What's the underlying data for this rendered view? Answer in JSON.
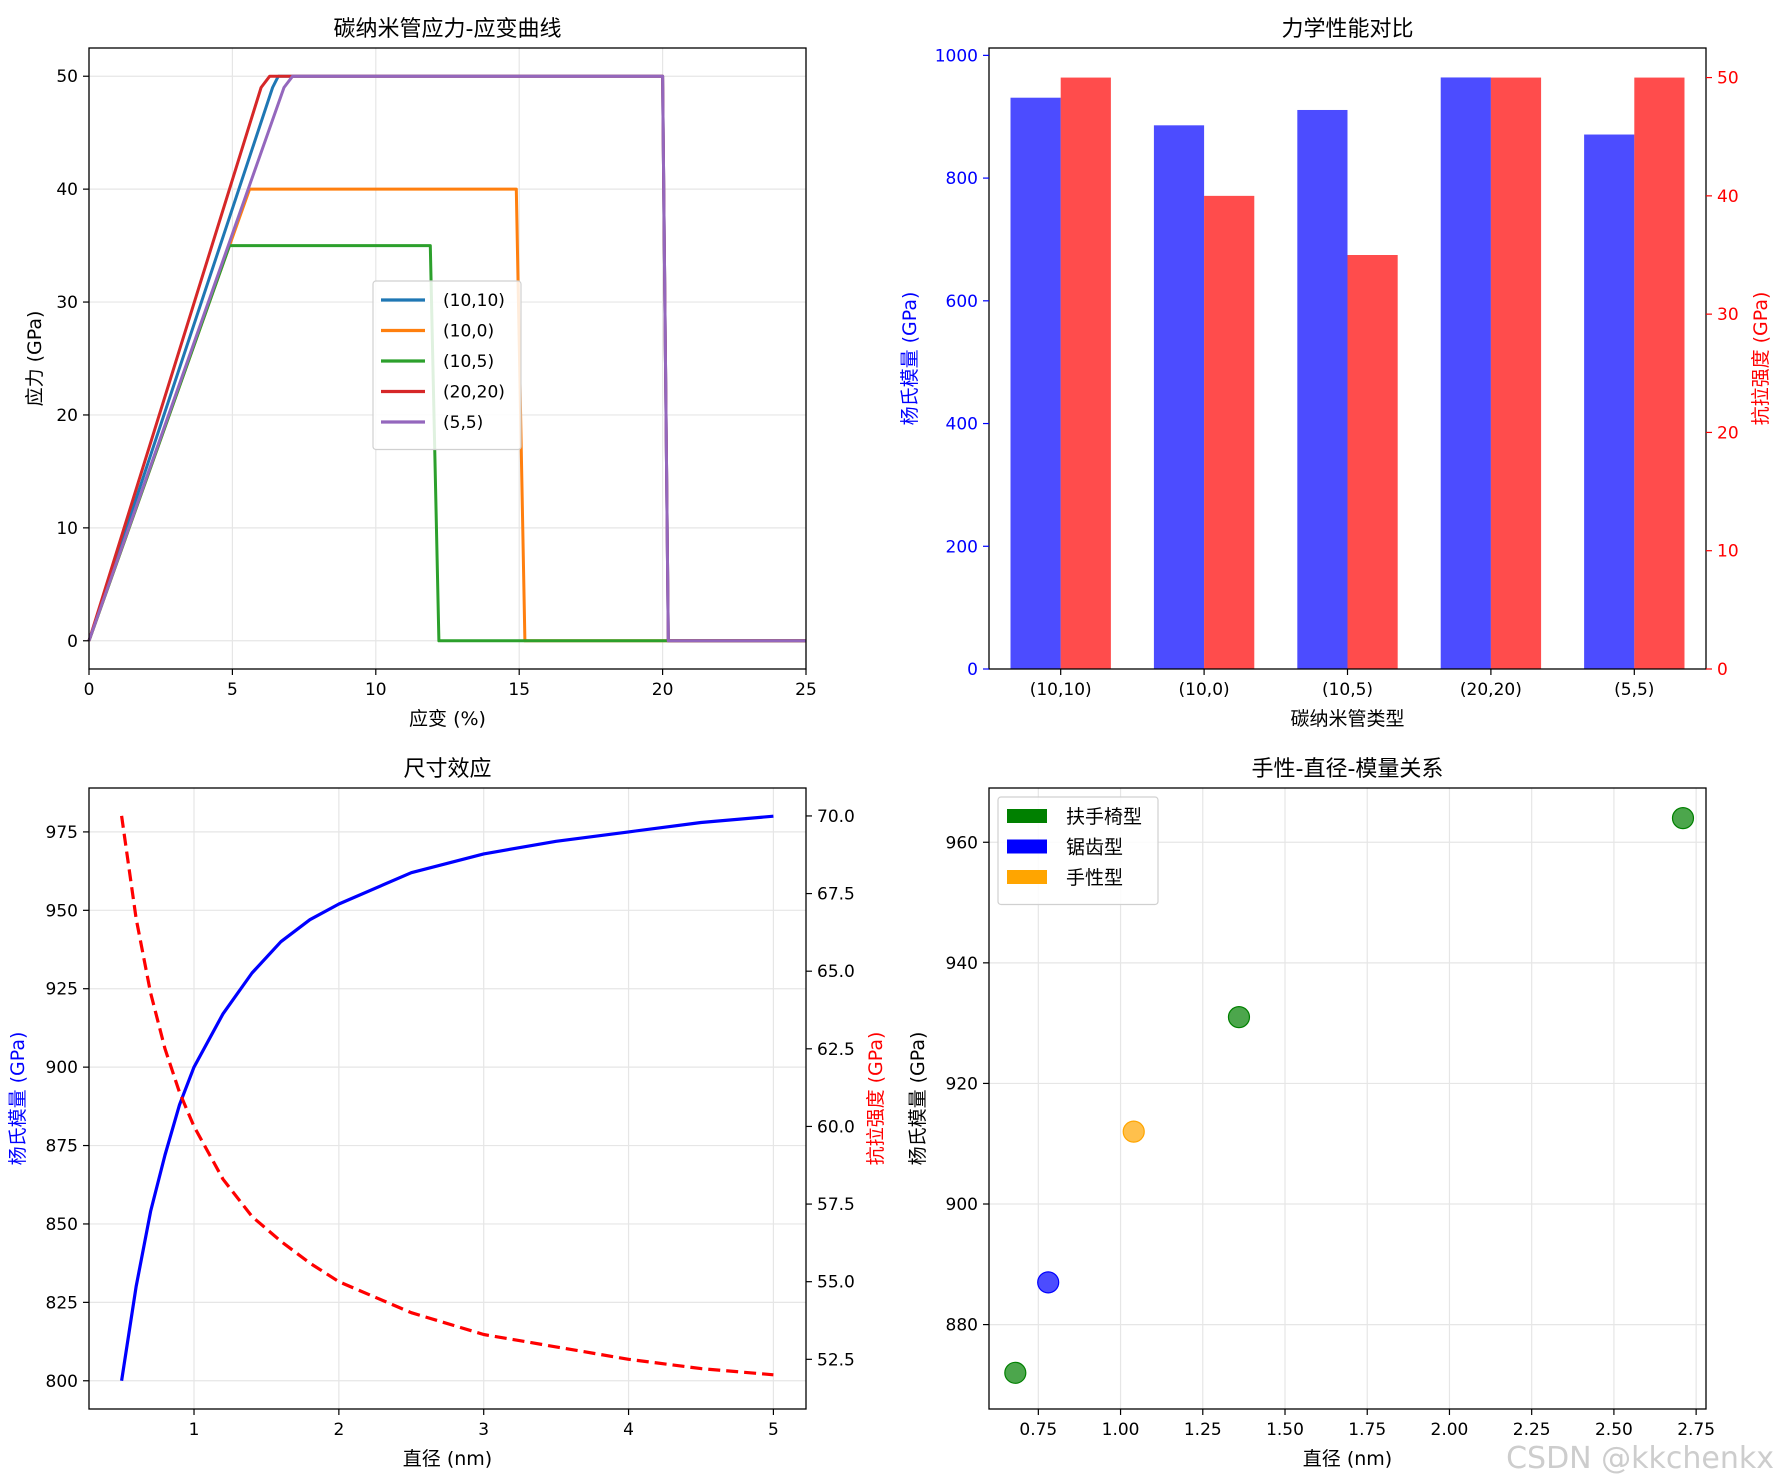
{
  "watermark": "CSDN @kkchenkx",
  "colors": {
    "tab_blue": "#1f77b4",
    "tab_orange": "#ff7f0e",
    "tab_green": "#2ca02c",
    "tab_red": "#d62728",
    "tab_purple": "#9467bd",
    "blue": "#0000ff",
    "red": "#ff0000",
    "green": "#008000",
    "orange": "#ffa500",
    "grid": "#e6e6e6",
    "text": "#000000"
  },
  "chart_data": [
    {
      "type": "line",
      "title": "碳纳米管应力-应变曲线",
      "xlabel": "应变 (%)",
      "ylabel": "应力 (GPa)",
      "xlim": [
        0,
        25
      ],
      "ylim": [
        -2.5,
        52.5
      ],
      "xticks": [
        0,
        5,
        10,
        15,
        20,
        25
      ],
      "xtick_labels": [
        "0",
        "5",
        "10",
        "15",
        "20",
        "25"
      ],
      "yticks": [
        0,
        10,
        20,
        30,
        40,
        50
      ],
      "ytick_labels": [
        "0",
        "10",
        "20",
        "30",
        "40",
        "50"
      ],
      "grid": true,
      "legend_position": "center",
      "series": [
        {
          "name": "(10,10)",
          "color": "#1f77b4",
          "points": [
            [
              0,
              0
            ],
            [
              6.4,
              49
            ],
            [
              6.6,
              50
            ],
            [
              20,
              50
            ],
            [
              20.2,
              0
            ],
            [
              25,
              0
            ]
          ]
        },
        {
          "name": "(10,0)",
          "color": "#ff7f0e",
          "points": [
            [
              0,
              0
            ],
            [
              5.6,
              40
            ],
            [
              14.9,
              40
            ],
            [
              15.2,
              0
            ],
            [
              25,
              0
            ]
          ]
        },
        {
          "name": "(10,5)",
          "color": "#2ca02c",
          "points": [
            [
              0,
              0
            ],
            [
              4.9,
              35
            ],
            [
              11.9,
              35
            ],
            [
              12.2,
              0
            ],
            [
              25,
              0
            ]
          ]
        },
        {
          "name": "(20,20)",
          "color": "#d62728",
          "points": [
            [
              0,
              0
            ],
            [
              6.0,
              49
            ],
            [
              6.3,
              50
            ],
            [
              20,
              50
            ],
            [
              20.2,
              0
            ],
            [
              25,
              0
            ]
          ]
        },
        {
          "name": "(5,5)",
          "color": "#9467bd",
          "points": [
            [
              0,
              0
            ],
            [
              6.8,
              49
            ],
            [
              7.1,
              50
            ],
            [
              20,
              50
            ],
            [
              20.2,
              0
            ],
            [
              25,
              0
            ]
          ]
        }
      ]
    },
    {
      "type": "bar",
      "title": "力学性能对比",
      "xlabel": "碳纳米管类型",
      "categories": [
        "(10,10)",
        "(10,0)",
        "(10,5)",
        "(20,20)",
        "(5,5)"
      ],
      "series": [
        {
          "name": "杨氏模量",
          "axis": "left",
          "color": "#0000ff",
          "opacity": 0.7,
          "values": [
            931,
            886,
            911,
            964,
            871
          ]
        },
        {
          "name": "抗拉强度",
          "axis": "right",
          "color": "#ff0000",
          "opacity": 0.7,
          "values": [
            50,
            40,
            35,
            50,
            50
          ]
        }
      ],
      "ylabel_left": "杨氏模量 (GPa)",
      "ylabel_right": "抗拉强度 (GPa)",
      "ylim_left": [
        0,
        1012
      ],
      "ylim_right": [
        0,
        52.5
      ],
      "yticks_left": [
        0,
        200,
        400,
        600,
        800,
        1000
      ],
      "ytick_labels_left": [
        "0",
        "200",
        "400",
        "600",
        "800",
        "1000"
      ],
      "yticks_right": [
        0,
        10,
        20,
        30,
        40,
        50
      ],
      "ytick_labels_right": [
        "0",
        "10",
        "20",
        "30",
        "40",
        "50"
      ],
      "grid": false
    },
    {
      "type": "line",
      "title": "尺寸效应",
      "xlabel": "直径 (nm)",
      "ylabel_left": "杨氏模量 (GPa)",
      "ylabel_right": "抗拉强度 (GPa)",
      "xlim": [
        0.275,
        5.225
      ],
      "ylim_left": [
        791,
        989
      ],
      "ylim_right": [
        50.9,
        70.9
      ],
      "xticks": [
        1,
        2,
        3,
        4,
        5
      ],
      "xtick_labels": [
        "1",
        "2",
        "3",
        "4",
        "5"
      ],
      "yticks_left": [
        800,
        825,
        850,
        875,
        900,
        925,
        950,
        975
      ],
      "ytick_labels_left": [
        "800",
        "825",
        "850",
        "875",
        "900",
        "925",
        "950",
        "975"
      ],
      "yticks_right": [
        52.5,
        55.0,
        57.5,
        60.0,
        62.5,
        65.0,
        67.5,
        70.0
      ],
      "ytick_labels_right": [
        "52.5",
        "55.0",
        "57.5",
        "60.0",
        "62.5",
        "65.0",
        "67.5",
        "70.0"
      ],
      "grid": true,
      "series": [
        {
          "name": "杨氏模量",
          "axis": "left",
          "color": "#0000ff",
          "dash": "solid",
          "x": [
            0.5,
            0.6,
            0.7,
            0.8,
            0.9,
            1.0,
            1.2,
            1.4,
            1.6,
            1.8,
            2.0,
            2.5,
            3.0,
            3.5,
            4.0,
            4.5,
            5.0
          ],
          "values": [
            800,
            830,
            854,
            872,
            888,
            900,
            917,
            930,
            940,
            947,
            952,
            962,
            968,
            972,
            975,
            978,
            980
          ]
        },
        {
          "name": "抗拉强度",
          "axis": "right",
          "color": "#ff0000",
          "dash": "dashed",
          "x": [
            0.5,
            0.6,
            0.7,
            0.8,
            0.9,
            1.0,
            1.2,
            1.4,
            1.6,
            1.8,
            2.0,
            2.5,
            3.0,
            3.5,
            4.0,
            4.5,
            5.0
          ],
          "values": [
            70.0,
            66.7,
            64.3,
            62.5,
            61.1,
            60.0,
            58.3,
            57.1,
            56.3,
            55.6,
            55.0,
            54.0,
            53.3,
            52.9,
            52.5,
            52.2,
            52.0
          ]
        }
      ]
    },
    {
      "type": "scatter",
      "title": "手性-直径-模量关系",
      "xlabel": "直径 (nm)",
      "ylabel": "杨氏模量 (GPa)",
      "xlim": [
        0.6,
        2.78
      ],
      "ylim": [
        866,
        969
      ],
      "xticks": [
        0.75,
        1.0,
        1.25,
        1.5,
        1.75,
        2.0,
        2.25,
        2.5,
        2.75
      ],
      "xtick_labels": [
        "0.75",
        "1.00",
        "1.25",
        "1.50",
        "1.75",
        "2.00",
        "2.25",
        "2.50",
        "2.75"
      ],
      "yticks": [
        880,
        900,
        920,
        940,
        960
      ],
      "ytick_labels": [
        "880",
        "900",
        "920",
        "940",
        "960"
      ],
      "grid": true,
      "legend_position": "upper-left",
      "legend": [
        {
          "label": "扶手椅型",
          "color": "#008000"
        },
        {
          "label": "锯齿型",
          "color": "#0000ff"
        },
        {
          "label": "手性型",
          "color": "#ffa500"
        }
      ],
      "points": [
        {
          "x": 0.68,
          "y": 872,
          "type": "扶手椅型",
          "color": "#008000"
        },
        {
          "x": 0.78,
          "y": 887,
          "type": "锯齿型",
          "color": "#0000ff"
        },
        {
          "x": 1.04,
          "y": 912,
          "type": "手性型",
          "color": "#ffa500"
        },
        {
          "x": 1.36,
          "y": 931,
          "type": "扶手椅型",
          "color": "#008000"
        },
        {
          "x": 2.71,
          "y": 964,
          "type": "扶手椅型",
          "color": "#008000"
        }
      ]
    }
  ]
}
